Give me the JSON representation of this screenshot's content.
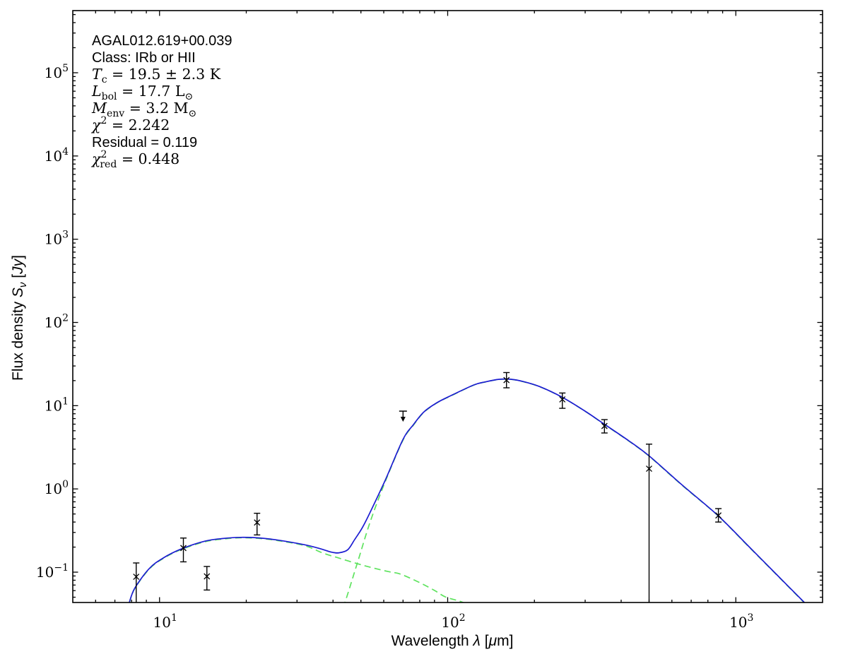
{
  "chart_data": {
    "type": "line",
    "description": "Spectral energy distribution (SED) fit: photometric data points with error bars, total model fit (blue solid) and two greybody/blackbody components (green dashed), log-log axes",
    "annotation": {
      "source_name": "AGAL012.619+00.039",
      "class": "Class: IRb or HII",
      "tc": "T_c = 19.5 ± 2.3 K",
      "lbol": "L_bol = 17.7 L_sun",
      "menv": "M_env = 3.2 M_sun",
      "chi2": "chi^2 = 2.242",
      "residual": "Residual = 0.119",
      "chi2_red": "chi^2_red = 0.448"
    },
    "annotation_lines": [
      {
        "font": "sans",
        "plain": "AGAL012.619+00.039",
        "tokens": [
          {
            "t": "AGAL012.619+00.039"
          }
        ]
      },
      {
        "font": "sans",
        "plain": "Class: IRb or HII",
        "tokens": [
          {
            "t": "Class: IRb or HII"
          }
        ]
      },
      {
        "font": "math",
        "plain": "T_c = 19.5 ± 2.3 K",
        "tokens": [
          {
            "t": "T",
            "i": true
          },
          {
            "t": "c",
            "sub": true
          },
          {
            "t": " = 19.5 ± 2.3 K"
          }
        ]
      },
      {
        "font": "math",
        "plain": "L_bol = 17.7 L_⊙",
        "tokens": [
          {
            "t": "L",
            "i": true
          },
          {
            "t": "bol",
            "sub": true
          },
          {
            "t": " = 17.7 L"
          },
          {
            "t": "⊙",
            "sub": true
          }
        ]
      },
      {
        "font": "math",
        "plain": "M_env = 3.2 M_⊙",
        "tokens": [
          {
            "t": "M",
            "i": true
          },
          {
            "t": "env",
            "sub": true
          },
          {
            "t": " = 3.2 M"
          },
          {
            "t": "⊙",
            "sub": true
          }
        ]
      },
      {
        "font": "math",
        "plain": "χ² = 2.242",
        "tokens": [
          {
            "t": "χ",
            "i": true
          },
          {
            "t": "2",
            "sup": true
          },
          {
            "t": " = 2.242"
          }
        ]
      },
      {
        "font": "sans",
        "plain": "Residual = 0.119",
        "tokens": [
          {
            "t": "Residual = 0.119"
          }
        ]
      },
      {
        "font": "math",
        "plain": "χ²_red = 0.448",
        "tokens": [
          {
            "t": "χ",
            "i": true
          },
          {
            "t": "2",
            "sup": true
          },
          {
            "t": "red",
            "sub": true,
            "dx": -10
          },
          {
            "t": " = 0.448"
          }
        ]
      }
    ],
    "xlabel": "Wavelength λ [μm]",
    "xlabel_tokens": [
      {
        "t": "Wavelength ",
        "f": "sans"
      },
      {
        "t": "λ",
        "i": true
      },
      {
        "t": " [",
        "f": "sans"
      },
      {
        "t": "μ",
        "i": true
      },
      {
        "t": "m]",
        "f": "sans"
      }
    ],
    "ylabel": "Flux density S_ν [Jy]",
    "ylabel_tokens": [
      {
        "t": "Flux density ",
        "f": "sans"
      },
      {
        "t": "S",
        "i": true
      },
      {
        "t": "ν",
        "sub": true,
        "i": true
      },
      {
        "t": " [",
        "f": "sans"
      },
      {
        "t": "Jy",
        "i": true
      },
      {
        "t": "]",
        "f": "sans"
      }
    ],
    "x_axis": {
      "scale": "log",
      "lim": [
        5,
        2000
      ],
      "unit": "μm",
      "major_ticks": [
        10,
        100,
        1000
      ],
      "major_tick_labels": [
        "10^1",
        "10^2",
        "10^3"
      ],
      "minor_ticks": "2-9 per decade"
    },
    "y_axis": {
      "scale": "log",
      "lim": [
        0.0432,
        558000
      ],
      "unit": "Jy",
      "major_ticks": [
        0.1,
        1,
        10,
        100,
        1000,
        10000,
        100000
      ],
      "major_tick_labels": [
        "10^-1",
        "10^0",
        "10^1",
        "10^2",
        "10^3",
        "10^4",
        "10^5"
      ],
      "minor_ticks": "2-9 per decade"
    },
    "grid": false,
    "legend": false,
    "colors": {
      "model_total": "#1c1cd2",
      "components": "#5fe35f",
      "data": "#000000",
      "frame": "#000000"
    },
    "data_points": [
      {
        "x": 8.3,
        "y": 0.088,
        "err_up": 0.041,
        "err_down": 0.05
      },
      {
        "x": 12.1,
        "y": 0.195,
        "err_up": 0.062,
        "err_down": 0.062
      },
      {
        "x": 14.6,
        "y": 0.089,
        "err_up": 0.028,
        "err_down": 0.028
      },
      {
        "x": 21.8,
        "y": 0.395,
        "err_up": 0.115,
        "err_down": 0.115
      },
      {
        "x": 160,
        "y": 20.3,
        "err_up": 4.7,
        "err_down": 3.9
      },
      {
        "x": 250,
        "y": 11.9,
        "err_up": 2.3,
        "err_down": 2.6
      },
      {
        "x": 350,
        "y": 5.7,
        "err_up": 1.1,
        "err_down": 1.0
      },
      {
        "x": 500,
        "y": 1.75,
        "err_up": 1.7,
        "err_down": 1.72
      },
      {
        "x": 870,
        "y": 0.48,
        "err_up": 0.1,
        "err_down": 0.08
      }
    ],
    "upper_limits": [
      {
        "x": 70,
        "y": 8.6
      }
    ],
    "series": [
      {
        "name": "total-model-fit",
        "style": "solid",
        "color": "#1c1cd2",
        "points": [
          [
            7.85,
            0.043
          ],
          [
            8.2,
            0.064
          ],
          [
            9.2,
            0.11
          ],
          [
            10.3,
            0.148
          ],
          [
            11.9,
            0.19
          ],
          [
            14.4,
            0.236
          ],
          [
            16.5,
            0.253
          ],
          [
            19.1,
            0.262
          ],
          [
            22,
            0.258
          ],
          [
            25.3,
            0.245
          ],
          [
            31.7,
            0.214
          ],
          [
            36,
            0.192
          ],
          [
            39.5,
            0.174
          ],
          [
            42,
            0.171
          ],
          [
            45,
            0.186
          ],
          [
            47.5,
            0.245
          ],
          [
            50.5,
            0.34
          ],
          [
            53.6,
            0.51
          ],
          [
            60.7,
            1.27
          ],
          [
            69.9,
            3.9
          ],
          [
            76,
            5.9
          ],
          [
            82.8,
            8.45
          ],
          [
            92,
            10.9
          ],
          [
            102.6,
            13.2
          ],
          [
            123,
            17.7
          ],
          [
            135,
            19.3
          ],
          [
            150,
            20.7
          ],
          [
            165,
            20.8
          ],
          [
            183,
            19.5
          ],
          [
            210,
            16.8
          ],
          [
            249,
            12.7
          ],
          [
            300,
            8.6
          ],
          [
            351,
            5.94
          ],
          [
            420,
            3.9
          ],
          [
            499,
            2.51
          ],
          [
            650,
            1.12
          ],
          [
            868,
            0.477
          ],
          [
            1100,
            0.21
          ],
          [
            1390,
            0.0925
          ],
          [
            1730,
            0.0432
          ]
        ]
      },
      {
        "name": "warm-component",
        "style": "dashed",
        "color": "#5fe35f",
        "points": [
          [
            7.85,
            0.0425
          ],
          [
            8.2,
            0.0632
          ],
          [
            9.2,
            0.1085
          ],
          [
            10.3,
            0.146
          ],
          [
            11.9,
            0.1875
          ],
          [
            14.4,
            0.2325
          ],
          [
            16.5,
            0.2495
          ],
          [
            19.1,
            0.2585
          ],
          [
            22,
            0.2545
          ],
          [
            25.3,
            0.2415
          ],
          [
            31.7,
            0.2095
          ],
          [
            37,
            0.169
          ],
          [
            42,
            0.1475
          ],
          [
            48.5,
            0.1265
          ],
          [
            55,
            0.1125
          ],
          [
            62,
            0.1018
          ],
          [
            68.8,
            0.0943
          ],
          [
            80,
            0.0748
          ],
          [
            90,
            0.0603
          ],
          [
            98.2,
            0.0504
          ],
          [
            110,
            0.0448
          ],
          [
            120,
            0.0398
          ]
        ]
      },
      {
        "name": "cold-component",
        "style": "dashed",
        "color": "#5fe35f",
        "points": [
          [
            41.5,
            0.0295
          ],
          [
            43.8,
            0.0415
          ],
          [
            48.5,
            0.1265
          ],
          [
            53.7,
            0.392
          ],
          [
            60.7,
            1.22
          ],
          [
            69.9,
            3.83
          ],
          [
            76,
            5.82
          ],
          [
            82.8,
            8.37
          ],
          [
            92,
            10.84
          ],
          [
            102.6,
            13.12
          ],
          [
            123,
            17.64
          ],
          [
            135,
            19.24
          ],
          [
            150,
            20.63
          ],
          [
            165,
            20.73
          ],
          [
            183,
            19.43
          ],
          [
            210,
            16.74
          ],
          [
            249,
            12.65
          ],
          [
            300,
            8.56
          ],
          [
            351,
            5.9
          ],
          [
            420,
            3.87
          ],
          [
            499,
            2.49
          ],
          [
            650,
            1.11
          ],
          [
            868,
            0.474
          ],
          [
            1100,
            0.208
          ],
          [
            1390,
            0.0918
          ],
          [
            1730,
            0.0428
          ]
        ]
      }
    ]
  }
}
